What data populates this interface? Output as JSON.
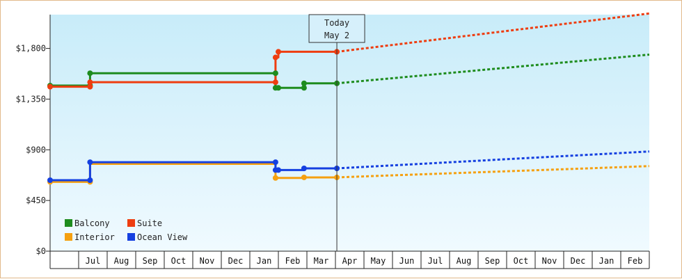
{
  "chart_data": {
    "type": "line",
    "title": "",
    "xlabel": "",
    "ylabel": "",
    "ylim": [
      0,
      2100
    ],
    "y_ticks": [
      {
        "value": 0,
        "label": "$0"
      },
      {
        "value": 450,
        "label": "$450"
      },
      {
        "value": 900,
        "label": "$900"
      },
      {
        "value": 1350,
        "label": "$1,350"
      },
      {
        "value": 1800,
        "label": "$1,800"
      }
    ],
    "x_axis": {
      "unit": "month",
      "start": "Jun",
      "months": [
        "Jul",
        "Aug",
        "Sep",
        "Oct",
        "Nov",
        "Dec",
        "Jan",
        "Feb",
        "Mar",
        "Apr",
        "May",
        "Jun",
        "Jul",
        "Aug",
        "Sep",
        "Oct",
        "Nov",
        "Dec",
        "Jan",
        "Feb"
      ]
    },
    "today": {
      "line1": "Today",
      "line2": "May 2",
      "x": 10.05
    },
    "grid": false,
    "legend_position": "bottom-left",
    "series": [
      {
        "name": "Balcony",
        "color": "#1e8c1e",
        "points": [
          [
            0,
            1470
          ],
          [
            1.4,
            1470
          ],
          [
            1.4,
            1580
          ],
          [
            7.9,
            1580
          ],
          [
            7.9,
            1450
          ],
          [
            8.0,
            1450
          ],
          [
            8.9,
            1450
          ],
          [
            8.9,
            1490
          ],
          [
            10.05,
            1490
          ]
        ],
        "markers": [
          [
            0,
            1470
          ],
          [
            1.4,
            1470
          ],
          [
            1.4,
            1580
          ],
          [
            7.9,
            1580
          ],
          [
            7.9,
            1450
          ],
          [
            8.0,
            1450
          ],
          [
            8.9,
            1450
          ],
          [
            8.9,
            1490
          ],
          [
            10.05,
            1490
          ]
        ],
        "projection": [
          [
            10.05,
            1490
          ],
          [
            21,
            1745
          ]
        ]
      },
      {
        "name": "Suite",
        "color": "#ee3d10",
        "points": [
          [
            0,
            1460
          ],
          [
            1.4,
            1460
          ],
          [
            1.4,
            1500
          ],
          [
            7.9,
            1500
          ],
          [
            7.9,
            1720
          ],
          [
            8.0,
            1720
          ],
          [
            8.0,
            1770
          ],
          [
            10.05,
            1770
          ]
        ],
        "markers": [
          [
            0,
            1460
          ],
          [
            1.4,
            1460
          ],
          [
            1.4,
            1500
          ],
          [
            7.9,
            1500
          ],
          [
            7.9,
            1720
          ],
          [
            8.0,
            1770
          ],
          [
            10.05,
            1770
          ]
        ],
        "projection": [
          [
            10.05,
            1770
          ],
          [
            21,
            2110
          ]
        ]
      },
      {
        "name": "Interior",
        "color": "#f5a010",
        "points": [
          [
            0,
            615
          ],
          [
            1.4,
            615
          ],
          [
            1.4,
            775
          ],
          [
            7.9,
            775
          ],
          [
            7.9,
            650
          ],
          [
            8.9,
            650
          ],
          [
            8.9,
            655
          ],
          [
            10.05,
            655
          ]
        ],
        "markers": [
          [
            0,
            615
          ],
          [
            1.4,
            615
          ],
          [
            7.9,
            650
          ],
          [
            8.9,
            655
          ],
          [
            10.05,
            655
          ]
        ],
        "projection": [
          [
            10.05,
            655
          ],
          [
            21,
            755
          ]
        ]
      },
      {
        "name": "Ocean View",
        "color": "#1540e0",
        "points": [
          [
            0,
            630
          ],
          [
            1.4,
            630
          ],
          [
            1.4,
            790
          ],
          [
            7.9,
            790
          ],
          [
            7.9,
            720
          ],
          [
            8.0,
            720
          ],
          [
            8.9,
            720
          ],
          [
            8.9,
            735
          ],
          [
            10.05,
            735
          ]
        ],
        "markers": [
          [
            0,
            630
          ],
          [
            1.4,
            630
          ],
          [
            1.4,
            790
          ],
          [
            7.9,
            790
          ],
          [
            7.9,
            720
          ],
          [
            8.0,
            720
          ],
          [
            8.9,
            735
          ],
          [
            10.05,
            735
          ]
        ],
        "projection": [
          [
            10.05,
            735
          ],
          [
            21,
            885
          ]
        ]
      }
    ]
  }
}
